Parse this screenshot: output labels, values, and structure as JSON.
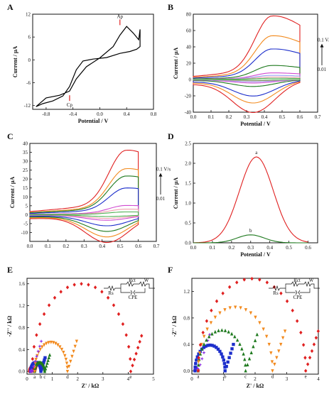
{
  "chart_data": [
    {
      "panel": "A",
      "type": "line",
      "xlabel": "Potential / V",
      "ylabel": "Current / μA",
      "xlim": [
        -1.0,
        0.8
      ],
      "ylim": [
        -13,
        12
      ],
      "xticks": [
        -0.8,
        -0.4,
        0.0,
        0.4,
        0.8
      ],
      "yticks": [
        -12,
        -6,
        0,
        6,
        12
      ],
      "series": [
        {
          "color": "#000000",
          "x": [
            -0.95,
            -0.8,
            -0.6,
            -0.45,
            -0.35,
            -0.2,
            0.0,
            0.2,
            0.3,
            0.4,
            0.5,
            0.58,
            0.6,
            0.6,
            0.55,
            0.45,
            0.3,
            0.1,
            -0.1,
            -0.25,
            -0.35,
            -0.45,
            -0.55,
            -0.7,
            -0.85,
            -0.95
          ],
          "y": [
            -12.3,
            -10.0,
            -9.3,
            -8.2,
            -5.0,
            -1.8,
            0.5,
            3.5,
            6.5,
            8.8,
            7.0,
            5.3,
            8.0,
            3.5,
            2.8,
            2.2,
            1.7,
            0.6,
            0.2,
            -0.3,
            -2.6,
            -7.0,
            -9.5,
            -10.8,
            -11.5,
            -12.3
          ]
        }
      ],
      "annotations": [
        {
          "text": "Ap",
          "x": 0.3,
          "y": 9.5
        },
        {
          "text": "Cp",
          "x": -0.45,
          "y": -9.3
        }
      ]
    },
    {
      "panel": "B",
      "type": "line",
      "xlabel": "Potential / V",
      "ylabel": "Current / μA",
      "xlim": [
        0.0,
        0.7
      ],
      "ylim": [
        -40,
        80
      ],
      "xticks": [
        0.0,
        0.1,
        0.2,
        0.3,
        0.4,
        0.5,
        0.6,
        0.7
      ],
      "yticks": [
        -40,
        -20,
        0,
        20,
        40,
        60,
        80
      ],
      "series": [
        {
          "color": "#e02020",
          "peak": 77,
          "back": -38
        },
        {
          "color": "#f28a1e",
          "peak": 53,
          "back": -27
        },
        {
          "color": "#1c2ecb",
          "peak": 37,
          "back": -19
        },
        {
          "color": "#1f7a1f",
          "peak": 17,
          "back": -8
        },
        {
          "color": "#d04ad0",
          "peak": 8,
          "back": -4
        },
        {
          "color": "#9aa0f0",
          "peak": 5,
          "back": -2.5
        },
        {
          "color": "#f0a0b0",
          "peak": 3,
          "back": -1.5
        },
        {
          "color": "#4caf50",
          "peak": 1.5,
          "back": -0.8
        }
      ],
      "annotations": [
        {
          "text": "0.1 V/s"
        },
        {
          "text": "0.01"
        }
      ]
    },
    {
      "panel": "C",
      "type": "line",
      "xlabel": "",
      "ylabel": "Current / μA",
      "xlim": [
        0.0,
        0.7
      ],
      "ylim": [
        -15,
        40
      ],
      "xticks": [
        0.0,
        0.1,
        0.2,
        0.3,
        0.4,
        0.5,
        0.6,
        0.7
      ],
      "yticks": [
        -10,
        -5,
        0,
        5,
        10,
        15,
        20,
        25,
        30,
        35,
        40
      ],
      "series": [
        {
          "color": "#e02020",
          "peak": 35,
          "back": -15
        },
        {
          "color": "#f28a1e",
          "peak": 25,
          "back": -12
        },
        {
          "color": "#1f7a1f",
          "peak": 21,
          "back": -9
        },
        {
          "color": "#1c2ecb",
          "peak": 14.5,
          "back": -6
        },
        {
          "color": "#d04ad0",
          "peak": 5,
          "back": -3
        },
        {
          "color": "#f0a0b0",
          "peak": 3,
          "back": -2
        },
        {
          "color": "#4caf50",
          "peak": 1.5,
          "back": -1
        }
      ],
      "annotations": [
        {
          "text": "0.1 V/s"
        },
        {
          "text": "0.01"
        }
      ]
    },
    {
      "panel": "D",
      "type": "line",
      "xlabel": "Potential / V",
      "ylabel": "Current / μA",
      "xlim": [
        0.0,
        0.65
      ],
      "ylim": [
        0.0,
        2.5
      ],
      "xticks": [
        0.0,
        0.1,
        0.2,
        0.3,
        0.4,
        0.5,
        0.6
      ],
      "yticks": [
        0.0,
        0.5,
        1.0,
        1.5,
        2.0,
        2.5
      ],
      "series": [
        {
          "name": "a",
          "color": "#e02020",
          "peak_x": 0.33,
          "peak_y": 2.16,
          "width": 0.1
        },
        {
          "name": "b",
          "color": "#1f7a1f",
          "peak_x": 0.3,
          "peak_y": 0.2,
          "width": 0.08
        }
      ]
    },
    {
      "panel": "E",
      "type": "scatter",
      "xlabel": "Z' / kΩ",
      "ylabel": "-Z'' / kΩ",
      "xlim": [
        0,
        5
      ],
      "ylim": [
        -0.05,
        1.7
      ],
      "xticks": [
        0,
        1,
        2,
        3,
        4,
        5
      ],
      "yticks": [
        0.0,
        0.4,
        0.8,
        1.2,
        1.6
      ],
      "circuit_labels": [
        "Rs",
        "Rct",
        "CPE",
        "W"
      ],
      "series": [
        {
          "name": "a",
          "color": "#e02020",
          "marker": "circle",
          "r0": 0.1,
          "r1": 0.3,
          "tail": 0.15
        },
        {
          "name": "b",
          "color": "#1c2ecb",
          "marker": "square",
          "r0": 0.15,
          "r1": 0.55,
          "tail": 0.25
        },
        {
          "name": "c",
          "color": "#1f7a1f",
          "marker": "triangle",
          "r0": 0.3,
          "r1": 0.7,
          "tail": 0.3
        },
        {
          "name": "d",
          "color": "#f28a1e",
          "marker": "triangle-down",
          "r0": 0.3,
          "r1": 1.6,
          "tail": 0.55
        },
        {
          "name": "e",
          "color": "#e02020",
          "marker": "diamond",
          "r0": 0.2,
          "r1": 4.1,
          "tail": 0.65
        },
        {
          "name": "",
          "color": "#8a2be2",
          "marker": "star",
          "r0": 0.15,
          "r1": 0.2,
          "tail": 0.55
        }
      ]
    },
    {
      "panel": "F",
      "type": "scatter",
      "xlabel": "Z' / kΩ",
      "ylabel": "-Z'' / kΩ",
      "xlim": [
        0,
        4
      ],
      "ylim": [
        -0.05,
        1.4
      ],
      "xticks": [
        0,
        1,
        2,
        3,
        4
      ],
      "yticks": [
        0.0,
        0.4,
        0.8,
        1.2
      ],
      "circuit_labels": [
        "Rs",
        "Rct",
        "CPE",
        "W"
      ],
      "series": [
        {
          "name": "a",
          "color": "#8a2be2",
          "marker": "star",
          "r0": 0.1,
          "r1": 0.2,
          "tail": 0.55
        },
        {
          "name": "b",
          "color": "#1c2ecb",
          "marker": "square",
          "r0": 0.1,
          "r1": 1.05,
          "tail": 0.4
        },
        {
          "name": "c",
          "color": "#1f7a1f",
          "marker": "triangle",
          "r0": 0.2,
          "r1": 1.7,
          "tail": 0.55
        },
        {
          "name": "d",
          "color": "#f28a1e",
          "marker": "triangle-down",
          "r0": 0.2,
          "r1": 2.55,
          "tail": 0.6
        },
        {
          "name": "e",
          "color": "#e02020",
          "marker": "diamond",
          "r0": 0.2,
          "r1": 3.6,
          "tail": 0.6
        }
      ]
    }
  ]
}
